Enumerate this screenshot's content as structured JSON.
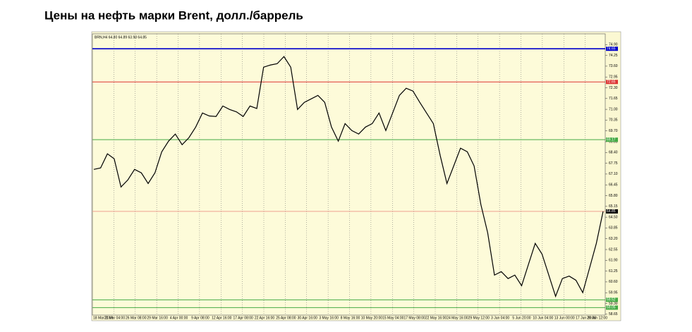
{
  "chart_data": {
    "type": "line",
    "title": "Цены на нефть марки Brent, долл./баррель",
    "header": "BRN,H4 64.80 64.89 63.98 64.85",
    "color": "#000000",
    "values": [
      67.38,
      67.47,
      68.32,
      68.02,
      66.32,
      66.74,
      67.38,
      67.17,
      66.53,
      67.17,
      68.44,
      69.08,
      69.51,
      68.87,
      69.29,
      69.93,
      70.78,
      70.6,
      70.57,
      71.2,
      70.99,
      70.85,
      70.57,
      71.2,
      71.05,
      73.54,
      73.67,
      73.75,
      74.18,
      73.54,
      70.99,
      71.42,
      71.63,
      71.84,
      71.42,
      69.93,
      69.08,
      70.14,
      69.72,
      69.51,
      69.93,
      70.14,
      70.78,
      69.72,
      70.78,
      71.84,
      72.27,
      72.1,
      71.42,
      70.78,
      70.14,
      68.23,
      66.53,
      67.59,
      68.66,
      68.44,
      67.59,
      65.26,
      63.56,
      61.01,
      61.22,
      60.8,
      61.01,
      60.37,
      61.65,
      62.92,
      62.28,
      61.01,
      59.73,
      60.8,
      60.95,
      60.7,
      59.95,
      61.43,
      62.92,
      64.85
    ],
    "x_labels": [
      "18 Mar 2019",
      "21 Mar 04:00",
      "26 Mar 08:00",
      "29 Mar 16:00",
      "4 Apr 00:00",
      "9 Apr 08:00",
      "12 Apr 16:00",
      "17 Apr 08:00",
      "22 Apr 16:00",
      "25 Apr 08:00",
      "30 Apr 16:00",
      "3 May 16:00",
      "8 May 16:00",
      "10 May 20:00",
      "15 May 04:00",
      "17 May 08:00",
      "22 May 16:00",
      "24 May 16:00",
      "29 May 12:00",
      "3 Jun 04:00",
      "5 Jun 20:00",
      "10 Jun 04:00",
      "13 Jun 00:00",
      "17 Jun 20:00",
      "20 Jun 12:00"
    ],
    "ylim": [
      58.6,
      75.55
    ],
    "yticks": [
      {
        "value": 74.9,
        "label": "74.90"
      },
      74.25,
      {
        "value": 73.6,
        "label": "73.60"
      },
      72.95,
      {
        "value": 72.3,
        "label": "72.30"
      },
      71.65,
      {
        "value": 71,
        "label": "71.00"
      },
      70.35,
      {
        "value": 69.7,
        "label": "69.70"
      },
      69.05,
      {
        "value": 68.4,
        "label": "68.40"
      },
      67.75,
      {
        "value": 67.1,
        "label": "67.10"
      },
      66.45,
      {
        "value": 65.8,
        "label": "65.80"
      },
      65.15,
      {
        "value": 64.5,
        "label": "64.50"
      },
      63.85,
      {
        "value": 63.2,
        "label": "63.20"
      },
      62.55,
      {
        "value": 61.9,
        "label": "61.90"
      },
      61.25,
      {
        "value": 60.6,
        "label": "60.60"
      },
      59.95,
      {
        "value": 59.3,
        "label": "59.30"
      },
      58.65
    ],
    "levels": [
      {
        "value": 74.65,
        "color": "#0000cc",
        "box": "#0000cc"
      },
      {
        "value": 72.65,
        "color": "#dd3333",
        "box": "#dd3333"
      },
      {
        "value": 69.17,
        "color": "#44aa44",
        "box": "#44aa44"
      },
      {
        "value": 64.85,
        "color": "#f0a090",
        "box": "#000000"
      },
      {
        "value": 59.52,
        "color": "#44aa44",
        "box": "#44aa44"
      },
      {
        "value": 59.05,
        "color": "#44aa44",
        "box": "#44aa44"
      }
    ],
    "vgrid": true
  }
}
